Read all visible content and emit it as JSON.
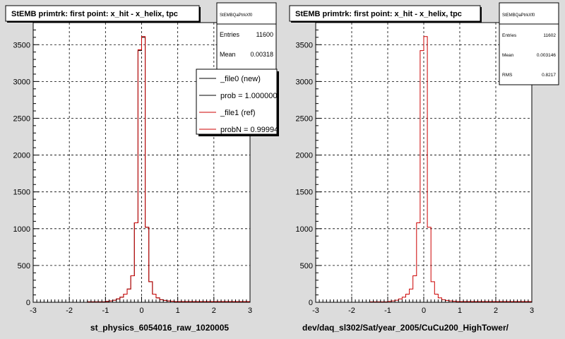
{
  "footer_left": "",
  "chart_data": [
    {
      "type": "histogram",
      "title": "StEMB primtrk: first point: x_hit - x_helix, tpc",
      "xlabel": "st_physics_6054016_raw_1020005",
      "xlim": [
        -3,
        3
      ],
      "ylim": [
        0,
        3800
      ],
      "xticks": [
        "-3",
        "-2",
        "-1",
        "0",
        "1",
        "2",
        "3"
      ],
      "yticks": [
        "0",
        "500",
        "1000",
        "1500",
        "2000",
        "2500",
        "3000",
        "3500"
      ],
      "grid": true,
      "stats": {
        "name": "StEMBQaPtrkXf0",
        "entries_label": "Entries",
        "entries": "11600",
        "mean_label": "Mean",
        "mean": "0.00318"
      },
      "legend": {
        "placement": "top-right",
        "entries": [
          {
            "label": "_file0 (new)",
            "color": "#000000"
          },
          {
            "label": "prob = 1.000000",
            "color": "#000000"
          },
          {
            "label": "_file1 (ref)",
            "color": "#cc0000"
          },
          {
            "label": "probN = 0.99994",
            "color": "#cc0000"
          }
        ]
      },
      "series": [
        {
          "color": "#000000",
          "points": [
            [
              -3,
              0
            ],
            [
              -1.5,
              6
            ],
            [
              -1.0,
              12
            ],
            [
              -0.9,
              18
            ],
            [
              -0.8,
              28
            ],
            [
              -0.7,
              45
            ],
            [
              -0.6,
              70
            ],
            [
              -0.5,
              110
            ],
            [
              -0.4,
              180
            ],
            [
              -0.3,
              360
            ],
            [
              -0.2,
              1080
            ],
            [
              -0.1,
              3420
            ],
            [
              0.0,
              3600
            ],
            [
              0.1,
              1020
            ],
            [
              0.2,
              280
            ],
            [
              0.3,
              110
            ],
            [
              0.4,
              60
            ],
            [
              0.5,
              35
            ],
            [
              0.6,
              25
            ],
            [
              0.7,
              18
            ],
            [
              0.8,
              14
            ],
            [
              0.9,
              10
            ],
            [
              1.0,
              10
            ],
            [
              3,
              0
            ]
          ]
        },
        {
          "color": "#cc0000",
          "points": [
            [
              -3,
              0
            ],
            [
              -1.5,
              6
            ],
            [
              -1.0,
              12
            ],
            [
              -0.9,
              18
            ],
            [
              -0.8,
              28
            ],
            [
              -0.7,
              45
            ],
            [
              -0.6,
              70
            ],
            [
              -0.5,
              110
            ],
            [
              -0.4,
              180
            ],
            [
              -0.3,
              360
            ],
            [
              -0.2,
              1080
            ],
            [
              -0.1,
              3430
            ],
            [
              0.0,
              3610
            ],
            [
              0.1,
              1020
            ],
            [
              0.2,
              280
            ],
            [
              0.3,
              110
            ],
            [
              0.4,
              60
            ],
            [
              0.5,
              35
            ],
            [
              0.6,
              25
            ],
            [
              0.7,
              18
            ],
            [
              0.8,
              14
            ],
            [
              0.9,
              10
            ],
            [
              1.0,
              10
            ],
            [
              3,
              0
            ]
          ]
        }
      ]
    },
    {
      "type": "histogram",
      "title": "StEMB primtrk: first point: x_hit - x_helix, tpc",
      "xlabel": "dev/daq_sl302/Sat/year_2005/CuCu200_HighTower/",
      "xlim": [
        -3,
        3
      ],
      "ylim": [
        0,
        3800
      ],
      "xticks": [
        "-3",
        "-2",
        "-1",
        "0",
        "1",
        "2",
        "3"
      ],
      "yticks": [
        "0",
        "500",
        "1000",
        "1500",
        "2000",
        "2500",
        "3000",
        "3500"
      ],
      "grid": true,
      "stats": {
        "name": "StEMBQaPtrkXf0",
        "entries_label": "Entries",
        "entries": "11602",
        "mean_label": "Mean",
        "mean": "0.003146",
        "rms_label": "RMS",
        "rms": "0.8217"
      },
      "series": [
        {
          "color": "#cc0000",
          "points": [
            [
              -3,
              0
            ],
            [
              -1.5,
              6
            ],
            [
              -1.0,
              12
            ],
            [
              -0.9,
              18
            ],
            [
              -0.8,
              28
            ],
            [
              -0.7,
              45
            ],
            [
              -0.6,
              70
            ],
            [
              -0.5,
              110
            ],
            [
              -0.4,
              180
            ],
            [
              -0.3,
              360
            ],
            [
              -0.2,
              1080
            ],
            [
              -0.1,
              3420
            ],
            [
              0.0,
              3610
            ],
            [
              0.1,
              1020
            ],
            [
              0.2,
              280
            ],
            [
              0.3,
              110
            ],
            [
              0.4,
              60
            ],
            [
              0.5,
              35
            ],
            [
              0.6,
              25
            ],
            [
              0.7,
              18
            ],
            [
              0.8,
              14
            ],
            [
              0.9,
              10
            ],
            [
              1.0,
              10
            ],
            [
              3,
              0
            ]
          ]
        }
      ]
    }
  ]
}
